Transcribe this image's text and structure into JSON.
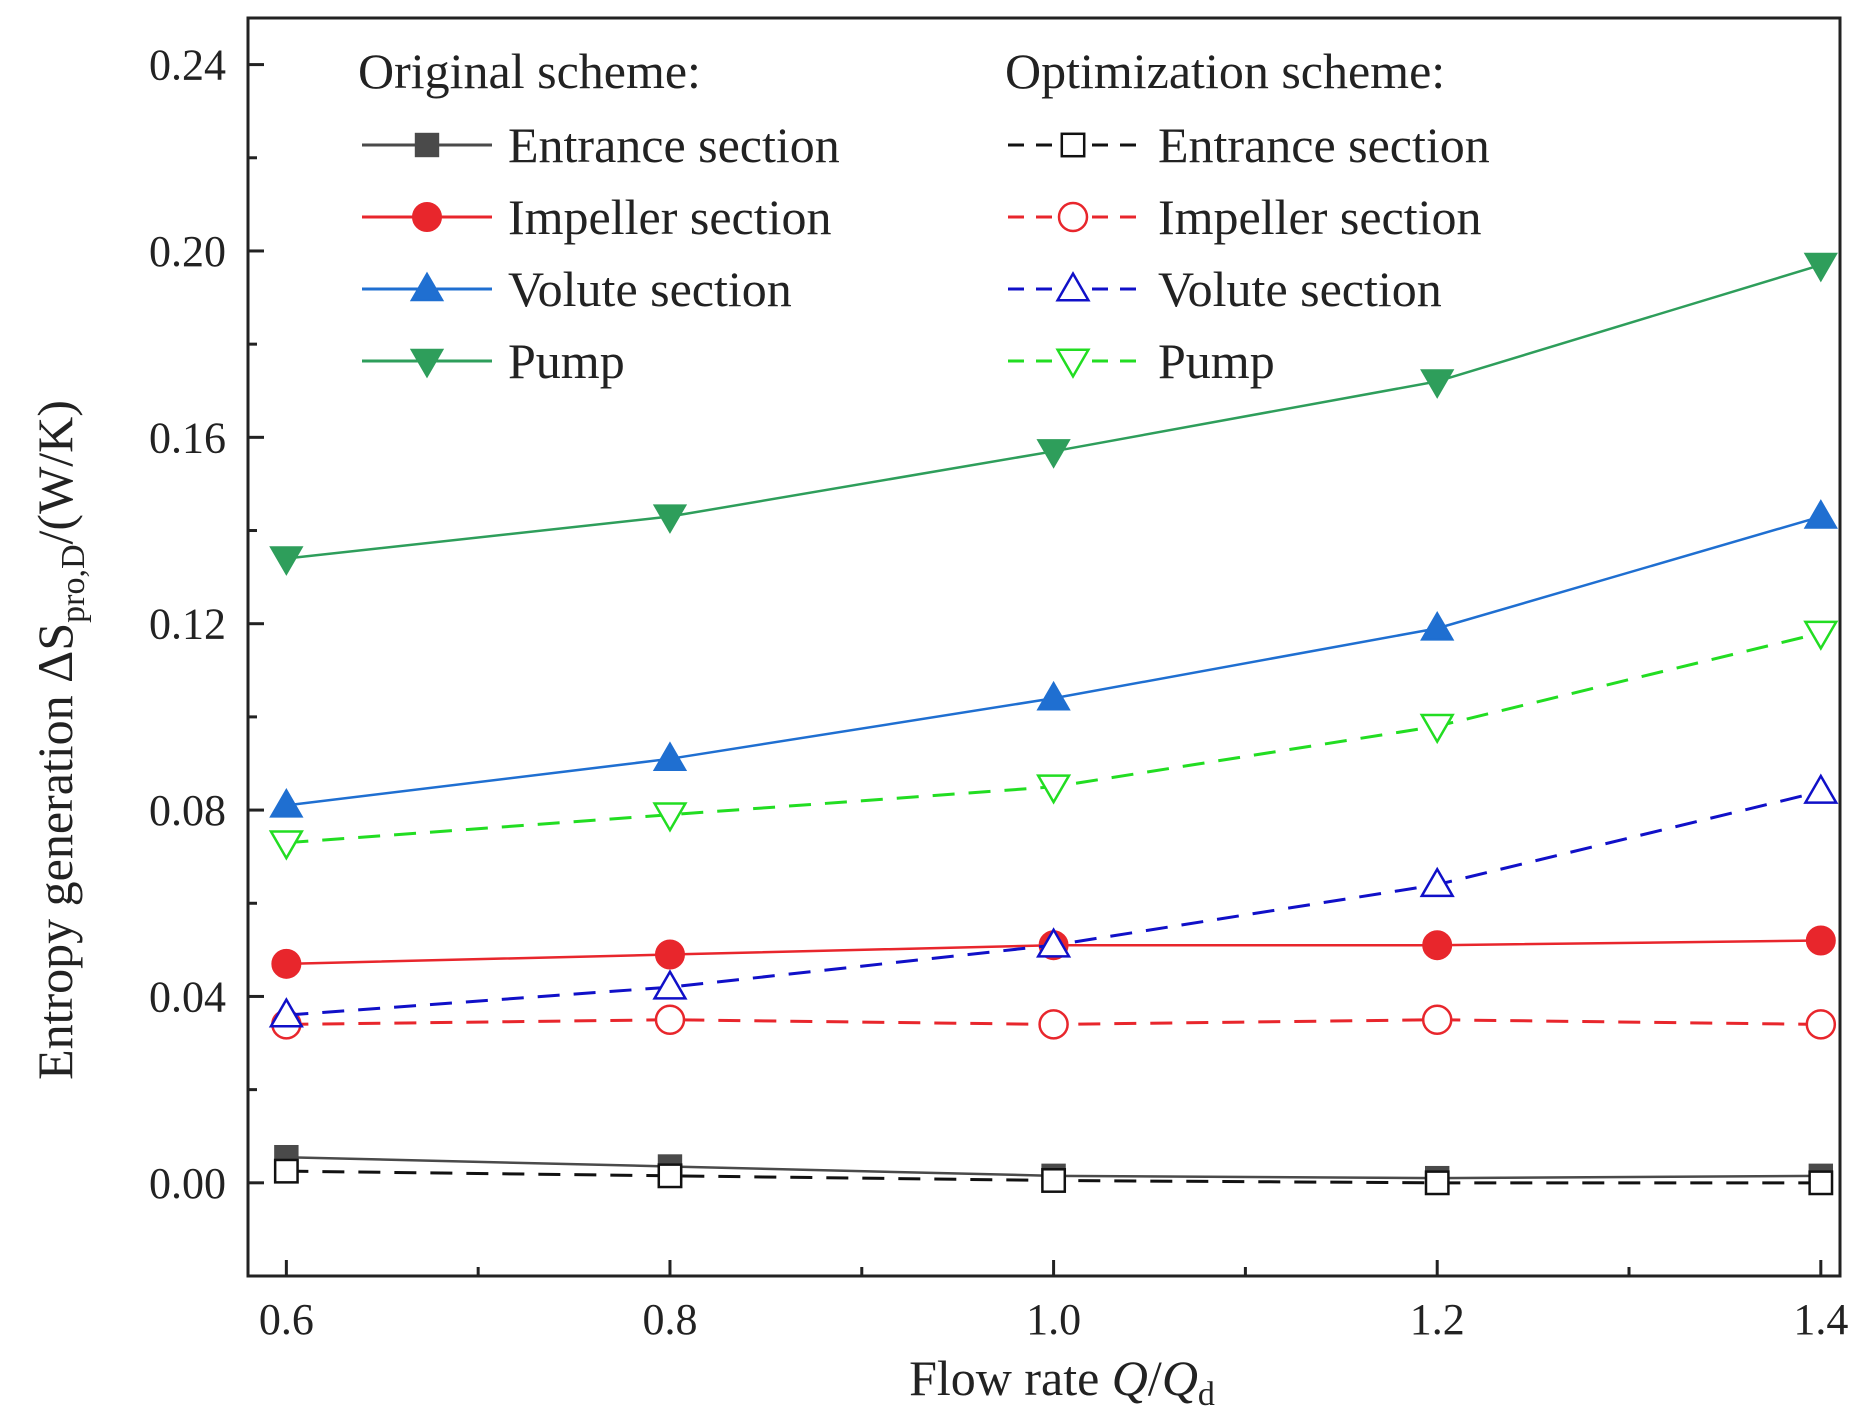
{
  "chart_data": {
    "type": "line",
    "xlabel": "Flow rate Q/Qd",
    "xlabel_parts": {
      "prefix": "Flow rate ",
      "q": "Q",
      "slash": "/",
      "qd": "Q",
      "sub": "d"
    },
    "ylabel": "Entropy generation ΔSpro,D/(W/K)",
    "ylabel_parts": {
      "prefix": "Entropy generation ΔS",
      "sub": "pro,D",
      "suffix": "/(W/K)"
    },
    "xlim": [
      0.58,
      1.41
    ],
    "ylim": [
      -0.02,
      0.25
    ],
    "x_ticks": [
      0.6,
      0.8,
      1.0,
      1.2,
      1.4
    ],
    "x_tick_labels": [
      "0.6",
      "0.8",
      "1.0",
      "1.2",
      "1.4"
    ],
    "y_ticks": [
      0.0,
      0.04,
      0.08,
      0.12,
      0.16,
      0.2,
      0.24
    ],
    "y_tick_labels": [
      "0.00",
      "0.04",
      "0.08",
      "0.12",
      "0.16",
      "0.20",
      "0.24"
    ],
    "grid": false,
    "legend_headers": [
      "Original scheme:",
      "Optimization scheme:"
    ],
    "legend_placement": "top-left",
    "x": [
      0.6,
      0.8,
      1.0,
      1.2,
      1.4
    ],
    "series": [
      {
        "name": "Entrance section",
        "group": "original",
        "color": "#4a4a4a",
        "marker": "square",
        "filled": true,
        "dash": false,
        "values": [
          0.0055,
          0.0035,
          0.0015,
          0.001,
          0.0015
        ]
      },
      {
        "name": "Impeller section",
        "group": "original",
        "color": "#e8262c",
        "marker": "circle",
        "filled": true,
        "dash": false,
        "values": [
          0.047,
          0.049,
          0.051,
          0.051,
          0.052
        ]
      },
      {
        "name": "Volute section",
        "group": "original",
        "color": "#1f6fd1",
        "marker": "triangle-up",
        "filled": true,
        "dash": false,
        "values": [
          0.081,
          0.091,
          0.104,
          0.119,
          0.143
        ]
      },
      {
        "name": "Pump",
        "group": "original",
        "color": "#2e9e5b",
        "marker": "triangle-down",
        "filled": true,
        "dash": false,
        "values": [
          0.134,
          0.143,
          0.157,
          0.172,
          0.197
        ]
      },
      {
        "name": "Entrance section",
        "group": "optimization",
        "color": "#111111",
        "marker": "square",
        "filled": false,
        "dash": true,
        "values": [
          0.0025,
          0.0015,
          0.0005,
          0.0,
          0.0
        ]
      },
      {
        "name": "Impeller section",
        "group": "optimization",
        "color": "#e8262c",
        "marker": "circle",
        "filled": false,
        "dash": true,
        "values": [
          0.034,
          0.035,
          0.034,
          0.035,
          0.034
        ]
      },
      {
        "name": "Volute section",
        "group": "optimization",
        "color": "#1010c8",
        "marker": "triangle-up",
        "filled": false,
        "dash": true,
        "values": [
          0.036,
          0.042,
          0.051,
          0.064,
          0.084
        ]
      },
      {
        "name": "Pump",
        "group": "optimization",
        "color": "#22dd22",
        "marker": "triangle-down",
        "filled": false,
        "dash": true,
        "values": [
          0.073,
          0.079,
          0.085,
          0.098,
          0.118
        ]
      }
    ]
  }
}
